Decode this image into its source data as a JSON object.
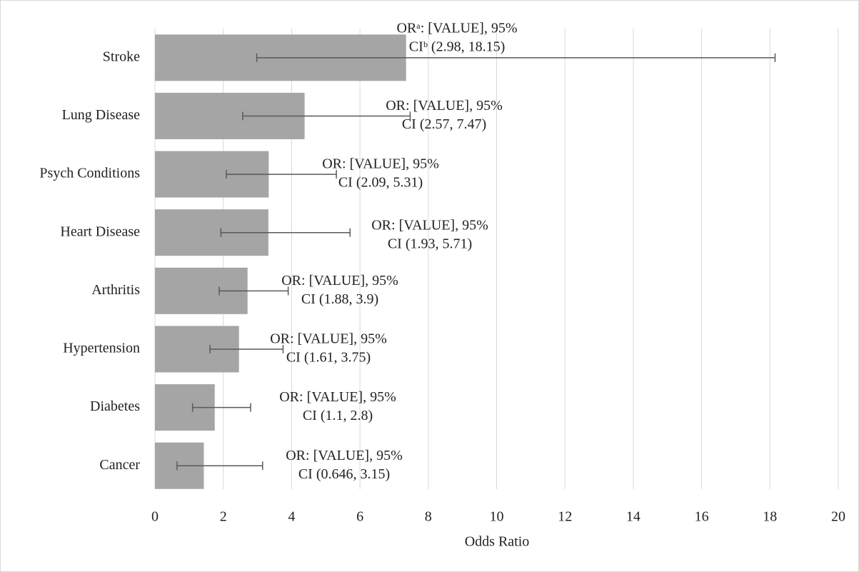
{
  "chart_data": {
    "type": "bar",
    "orientation": "horizontal",
    "x_label": "Odds Ratio",
    "categories": [
      "Stroke",
      "Lung Disease",
      "Psych Conditions",
      "Heart Disease",
      "Arthritis",
      "Hypertension",
      "Diabetes",
      "Cancer"
    ],
    "values": [
      7.35,
      4.38,
      3.33,
      3.32,
      2.71,
      2.46,
      1.75,
      1.43
    ],
    "error_low": [
      2.98,
      2.57,
      2.09,
      1.93,
      1.88,
      1.61,
      1.1,
      0.646
    ],
    "error_high": [
      18.15,
      7.47,
      5.31,
      5.71,
      3.9,
      3.75,
      2.8,
      3.15
    ],
    "value_labels": [
      [
        "ORᵃ: [VALUE], 95%",
        "CIᵇ (2.98, 18.15)"
      ],
      [
        "OR: [VALUE], 95%",
        "CI (2.57, 7.47)"
      ],
      [
        "OR: [VALUE], 95%",
        "CI (2.09, 5.31)"
      ],
      [
        "OR: [VALUE], 95%",
        "CI (1.93, 5.71)"
      ],
      [
        "OR: [VALUE], 95%",
        "CI (1.88, 3.9)"
      ],
      [
        "OR: [VALUE], 95%",
        "CI (1.61, 3.75)"
      ],
      [
        "OR: [VALUE], 95%",
        "CI (1.1, 2.8)"
      ],
      [
        "OR: [VALUE], 95%",
        "CI (0.646, 3.15)"
      ]
    ],
    "color": "#a5a5a5",
    "error_color": "#595959",
    "xlim": [
      0,
      20
    ],
    "xticks": [
      0,
      2,
      4,
      6,
      8,
      10,
      12,
      14,
      16,
      18,
      20
    ],
    "grid": true
  }
}
